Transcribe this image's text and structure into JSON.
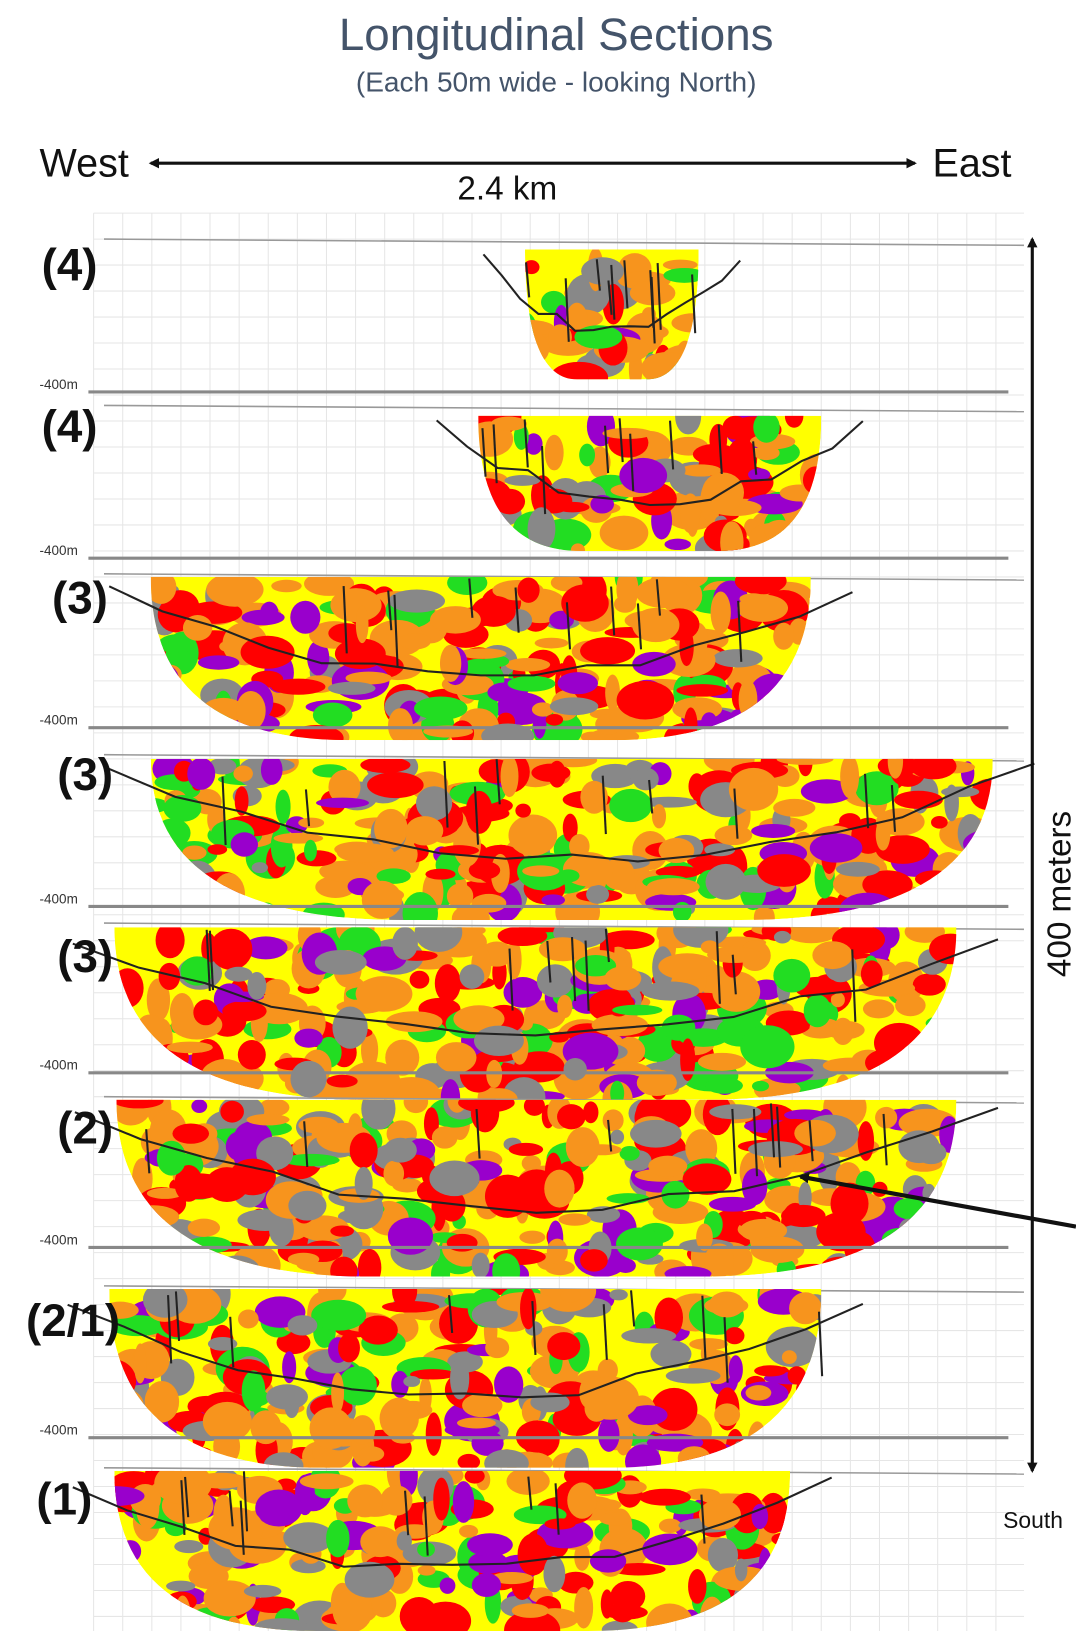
{
  "header": {
    "title": "Longitudinal Sections",
    "subtitle": "(Each 50m wide - looking North)"
  },
  "axis": {
    "west": "West",
    "east": "East",
    "width": "2.4 km",
    "height": "400 meters",
    "south": "South"
  },
  "sections": [
    {
      "label": "(4)",
      "depth": "-400m"
    },
    {
      "label": "(4)",
      "depth": "-400m"
    },
    {
      "label": "(3)",
      "depth": "-400m"
    },
    {
      "label": "(3)",
      "depth": "-400m"
    },
    {
      "label": "(3)",
      "depth": "-400m"
    },
    {
      "label": "(2)",
      "depth": "-400m"
    },
    {
      "label": "(2/1)",
      "depth": "-400m"
    },
    {
      "label": "(1)"
    }
  ]
}
